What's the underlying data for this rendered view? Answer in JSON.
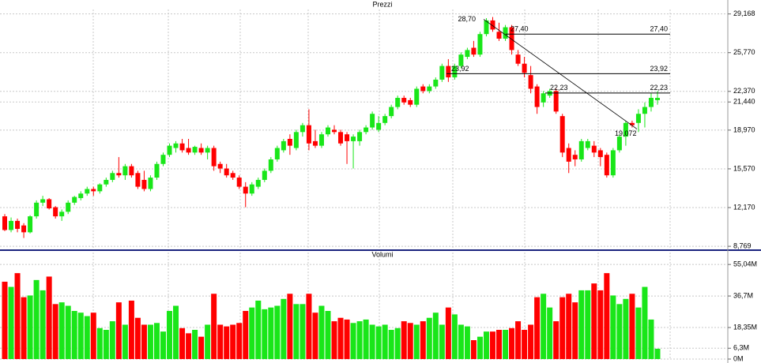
{
  "chart_data": [
    {
      "type": "candlestick",
      "title": "Prezzi",
      "open": [
        11.4,
        10.2,
        11.0,
        10.6,
        10.0,
        11.4,
        12.6,
        12.9,
        12.2,
        11.4,
        11.8,
        12.6,
        13.0,
        13.4,
        13.8,
        13.6,
        14.2,
        14.6,
        15.2,
        15.0,
        15.8,
        15.2,
        14.6,
        13.8,
        14.8,
        16.0,
        16.8,
        17.4,
        17.8,
        17.4,
        17.0,
        17.4,
        17.0,
        17.4,
        16.0,
        15.6,
        15.2,
        14.8,
        14.0,
        13.4,
        14.0,
        14.6,
        15.4,
        16.4,
        17.2,
        18.2,
        17.4,
        18.8,
        19.4,
        18.0,
        17.6,
        18.6,
        19.0,
        18.8,
        18.6,
        18.0,
        18.0,
        18.8,
        19.2,
        19.0,
        19.6,
        20.2,
        21.0,
        21.8,
        21.6,
        21.2,
        22.8,
        22.4,
        22.8,
        23.4,
        24.6,
        23.6,
        24.6,
        25.4,
        26.2,
        25.6,
        27.4,
        28.6,
        27.6,
        27.0,
        28.0,
        25.6,
        24.8,
        23.8,
        22.8,
        21.4,
        22.0,
        22.4,
        20.2,
        17.4,
        16.8,
        16.4,
        17.4,
        17.6,
        17.2,
        16.8,
        15.0,
        17.2,
        18.4,
        19.6,
        19.6,
        20.4,
        21.0,
        21.6
      ],
      "high": [
        11.6,
        11.3,
        11.2,
        10.8,
        11.5,
        12.8,
        13.2,
        13.0,
        12.3,
        12.0,
        12.8,
        13.2,
        13.6,
        14.0,
        14.0,
        14.3,
        14.8,
        15.4,
        16.6,
        16.0,
        16.0,
        15.4,
        15.4,
        15.0,
        16.2,
        17.0,
        17.8,
        18.0,
        18.2,
        18.2,
        17.6,
        17.8,
        17.6,
        17.6,
        16.2,
        16.0,
        15.4,
        15.0,
        14.4,
        14.4,
        14.8,
        15.6,
        16.6,
        17.6,
        18.2,
        18.6,
        19.0,
        19.6,
        20.8,
        19.0,
        18.8,
        19.4,
        19.4,
        19.0,
        18.8,
        18.6,
        19.0,
        19.4,
        20.6,
        20.2,
        20.4,
        21.2,
        22.0,
        22.0,
        21.8,
        22.8,
        23.0,
        23.0,
        23.6,
        24.8,
        25.2,
        24.8,
        25.8,
        26.2,
        26.8,
        27.6,
        28.8,
        28.9,
        28.4,
        28.2,
        28.2,
        26.0,
        25.4,
        24.6,
        23.0,
        22.4,
        22.6,
        22.6,
        20.4,
        17.8,
        17.2,
        18.2,
        18.2,
        18.0,
        17.4,
        17.0,
        17.4,
        18.6,
        19.8,
        19.8,
        20.8,
        21.4,
        22.2,
        22.4
      ],
      "low": [
        10.1,
        10.0,
        10.0,
        9.5,
        9.9,
        11.2,
        12.3,
        12.0,
        11.2,
        11.0,
        11.6,
        12.4,
        12.8,
        13.2,
        13.2,
        13.4,
        14.0,
        14.4,
        14.8,
        14.6,
        14.8,
        13.8,
        13.6,
        13.6,
        14.6,
        15.8,
        16.6,
        17.0,
        17.0,
        16.8,
        16.8,
        16.8,
        16.4,
        15.4,
        15.2,
        14.8,
        14.6,
        13.8,
        12.2,
        13.2,
        13.8,
        14.4,
        15.2,
        16.2,
        17.0,
        16.8,
        17.2,
        18.4,
        17.2,
        17.4,
        17.4,
        18.4,
        18.6,
        17.6,
        16.0,
        15.6,
        17.6,
        18.6,
        19.0,
        18.8,
        19.4,
        20.0,
        20.8,
        21.2,
        21.0,
        21.0,
        22.2,
        22.2,
        22.6,
        23.2,
        23.2,
        23.4,
        24.4,
        25.2,
        25.4,
        25.4,
        27.2,
        27.6,
        26.8,
        26.8,
        25.6,
        24.6,
        23.6,
        22.2,
        20.4,
        21.0,
        21.8,
        20.4,
        16.6,
        15.2,
        15.8,
        16.2,
        17.2,
        16.6,
        15.8,
        14.8,
        14.8,
        17.0,
        17.6,
        19.2,
        18.8,
        19.2,
        20.6,
        21.2
      ],
      "close": [
        10.2,
        11.0,
        10.3,
        10.0,
        11.4,
        12.6,
        12.9,
        12.1,
        11.4,
        11.8,
        12.6,
        13.1,
        13.4,
        13.8,
        13.6,
        14.2,
        14.6,
        15.2,
        15.0,
        15.8,
        15.0,
        14.0,
        13.8,
        14.8,
        16.0,
        16.8,
        17.6,
        17.8,
        17.2,
        17.0,
        17.5,
        17.0,
        17.4,
        15.8,
        15.6,
        15.0,
        14.8,
        14.0,
        13.4,
        14.2,
        14.6,
        15.4,
        16.4,
        17.4,
        18.0,
        17.6,
        18.8,
        19.4,
        17.8,
        17.6,
        18.6,
        19.2,
        18.8,
        17.8,
        18.0,
        18.4,
        18.8,
        19.2,
        20.4,
        19.6,
        20.2,
        21.0,
        21.8,
        21.4,
        21.2,
        22.6,
        22.4,
        22.8,
        23.4,
        24.6,
        23.6,
        24.6,
        25.6,
        26.0,
        25.6,
        27.4,
        28.6,
        27.8,
        27.0,
        28.0,
        26.0,
        24.8,
        24.0,
        22.6,
        21.0,
        22.2,
        22.4,
        20.6,
        17.0,
        16.2,
        16.4,
        18.0,
        18.0,
        17.0,
        16.6,
        15.0,
        17.2,
        18.4,
        19.6,
        19.4,
        20.4,
        21.0,
        21.8,
        21.8
      ],
      "up_color": "#19e619",
      "down_color": "#ff0000",
      "ylim": [
        8.5,
        29.7
      ],
      "yticks": [
        {
          "value": 29.168,
          "label": "29,168"
        },
        {
          "value": 25.77,
          "label": "25,770"
        },
        {
          "value": 22.37,
          "label": "22,370"
        },
        {
          "value": 21.44,
          "label": "21,440"
        },
        {
          "value": 18.97,
          "label": "18,970"
        },
        {
          "value": 15.57,
          "label": "15,570"
        },
        {
          "value": 12.17,
          "label": "12,170"
        },
        {
          "value": 8.769,
          "label": "8,769"
        }
      ],
      "grid": true,
      "levels": [
        {
          "value": 27.4,
          "label": "27,40"
        },
        {
          "value": 23.92,
          "label": "23,92"
        },
        {
          "value": 22.23,
          "label": "22,23"
        }
      ],
      "peak": {
        "value": 28.7,
        "label": "28,70"
      },
      "trough": {
        "value": 19.072,
        "label": "19,072"
      }
    },
    {
      "type": "bar",
      "title": "Volumi",
      "values": [
        45,
        42,
        50,
        36,
        37,
        46,
        40,
        48,
        32,
        33,
        31,
        28,
        27,
        25,
        27,
        18,
        17,
        22,
        33,
        20,
        34,
        24,
        20,
        20,
        21,
        16,
        28,
        31,
        18,
        15,
        17,
        13,
        20,
        38,
        20,
        19,
        20,
        21,
        28,
        30,
        34,
        29,
        30,
        31,
        35,
        38,
        32,
        32,
        38,
        27,
        31,
        28,
        22,
        24,
        23,
        21,
        22,
        23,
        20,
        19,
        20,
        17,
        18,
        22,
        21,
        20,
        22,
        24,
        27,
        20,
        30,
        26,
        20,
        19,
        11,
        13,
        16,
        16,
        17,
        17,
        18,
        22,
        17,
        20,
        36,
        38,
        30,
        22,
        36,
        38,
        33,
        40,
        40,
        44,
        40,
        50,
        37,
        32,
        35,
        38,
        30,
        42,
        23,
        6
      ],
      "ylim": [
        0,
        62
      ],
      "yticks": [
        {
          "value": 55.04,
          "label": "55,04M"
        },
        {
          "value": 36.7,
          "label": "36,7M"
        },
        {
          "value": 18.35,
          "label": "18,35M"
        },
        {
          "value": 6.3,
          "label": "6,3M"
        },
        {
          "value": 0,
          "label": "0M"
        }
      ],
      "grid": true
    }
  ]
}
